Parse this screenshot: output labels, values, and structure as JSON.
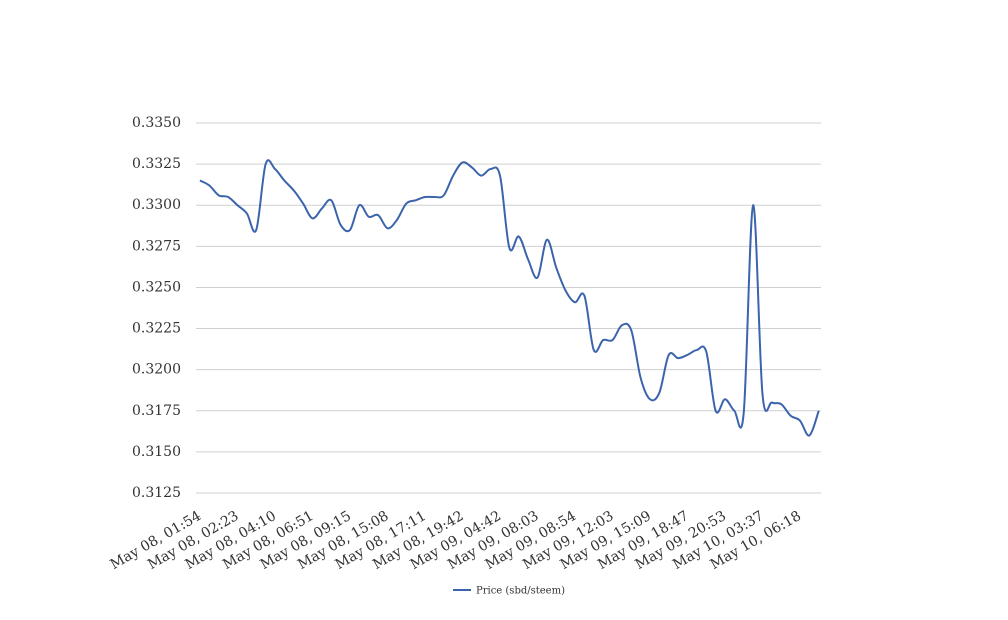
{
  "chart_data": {
    "type": "line",
    "categories": [
      "May 08, 01:54",
      null,
      null,
      null,
      "May 08, 02:23",
      null,
      null,
      null,
      "May 08, 04:10",
      null,
      null,
      null,
      "May 08, 06:51",
      null,
      null,
      null,
      "May 08, 09:15",
      null,
      null,
      null,
      "May 08, 15:08",
      null,
      null,
      null,
      "May 08, 17:11",
      null,
      null,
      null,
      "May 08, 19:42",
      null,
      null,
      null,
      "May 09, 04:42",
      null,
      null,
      null,
      "May 09, 08:03",
      null,
      null,
      null,
      "May 09, 08:54",
      null,
      null,
      null,
      "May 09, 12:03",
      null,
      null,
      null,
      "May 09, 15:09",
      null,
      null,
      null,
      "May 09, 18:47",
      null,
      null,
      null,
      "May 09, 20:53",
      null,
      null,
      null,
      "May 10, 03:37",
      null,
      null,
      null,
      "May 10, 06:18",
      null,
      null
    ],
    "series": [
      {
        "name": "Price (sbd/steem)",
        "color": "#3c64ac",
        "values": [
          0.3315,
          0.3312,
          0.3306,
          0.3305,
          0.33,
          0.3295,
          0.3285,
          0.3325,
          0.3322,
          0.3315,
          0.3309,
          0.3301,
          0.3292,
          0.3298,
          0.3303,
          0.3288,
          0.3285,
          0.33,
          0.3293,
          0.3294,
          0.3286,
          0.3291,
          0.3301,
          0.3303,
          0.3305,
          0.3305,
          0.3306,
          0.3318,
          0.3326,
          0.3323,
          0.3318,
          0.3322,
          0.3318,
          0.3274,
          0.3281,
          0.3267,
          0.3256,
          0.3279,
          0.3262,
          0.3248,
          0.3241,
          0.3245,
          0.3212,
          0.3218,
          0.3218,
          0.3227,
          0.3224,
          0.3195,
          0.3182,
          0.3186,
          0.3209,
          0.3207,
          0.3209,
          0.3212,
          0.3211,
          0.3175,
          0.3182,
          0.3175,
          0.3174,
          0.33,
          0.3185,
          0.318,
          0.3179,
          0.3172,
          0.3169,
          0.316,
          0.3175
        ]
      }
    ],
    "ylim": [
      0.3125,
      0.335
    ],
    "yticks": [
      0.3125,
      {
        "value": 0.315,
        "label": "0.3150"
      },
      0.3175,
      {
        "value": 0.32,
        "label": "0.3200"
      },
      0.3225,
      {
        "value": 0.325,
        "label": "0.3250"
      },
      0.3275,
      {
        "value": 0.33,
        "label": "0.3300"
      },
      0.3325,
      {
        "value": 0.335,
        "label": "0.3350"
      }
    ],
    "grid": true,
    "legend": "bottom"
  }
}
